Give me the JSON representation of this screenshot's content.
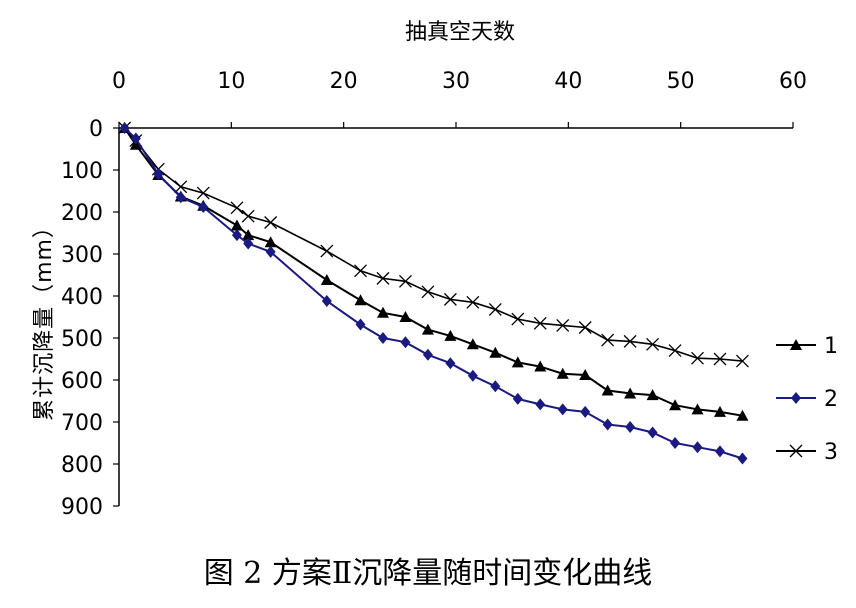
{
  "chart_data": {
    "type": "line",
    "xlabel": "抽真空天数",
    "ylabel": "累计沉降量（mm）",
    "caption": "图 2  方案Ⅱ沉降量随时间变化曲线",
    "x_axis_position": "top",
    "y_axis_inverted": true,
    "xlim": [
      0,
      60
    ],
    "ylim": [
      0,
      900
    ],
    "xticks": [
      0,
      10,
      20,
      30,
      40,
      50,
      60
    ],
    "yticks": [
      0,
      100,
      200,
      300,
      400,
      500,
      600,
      700,
      800,
      900
    ],
    "grid": false,
    "legend_position": "right",
    "series": [
      {
        "name": "1",
        "marker": "triangle",
        "color": "#000000",
        "points": [
          [
            0.5,
            0
          ],
          [
            1.5,
            40
          ],
          [
            3.5,
            112
          ],
          [
            5.5,
            163
          ],
          [
            7.5,
            185
          ],
          [
            10.5,
            232
          ],
          [
            11.5,
            255
          ],
          [
            13.5,
            272
          ],
          [
            18.5,
            362
          ],
          [
            21.5,
            410
          ],
          [
            23.5,
            440
          ],
          [
            25.5,
            450
          ],
          [
            27.5,
            480
          ],
          [
            29.5,
            495
          ],
          [
            31.5,
            515
          ],
          [
            33.5,
            535
          ],
          [
            35.5,
            558
          ],
          [
            37.5,
            568
          ],
          [
            39.5,
            585
          ],
          [
            41.5,
            588
          ],
          [
            43.5,
            625
          ],
          [
            45.5,
            632
          ],
          [
            47.5,
            636
          ],
          [
            49.5,
            660
          ],
          [
            51.5,
            670
          ],
          [
            53.5,
            676
          ],
          [
            55.5,
            685
          ]
        ]
      },
      {
        "name": "2",
        "marker": "diamond",
        "color": "#1a1a80",
        "points": [
          [
            0.5,
            0
          ],
          [
            1.5,
            25
          ],
          [
            3.5,
            110
          ],
          [
            5.5,
            165
          ],
          [
            7.5,
            188
          ],
          [
            10.5,
            255
          ],
          [
            11.5,
            275
          ],
          [
            13.5,
            295
          ],
          [
            18.5,
            412
          ],
          [
            21.5,
            468
          ],
          [
            23.5,
            500
          ],
          [
            25.5,
            510
          ],
          [
            27.5,
            540
          ],
          [
            29.5,
            560
          ],
          [
            31.5,
            590
          ],
          [
            33.5,
            615
          ],
          [
            35.5,
            645
          ],
          [
            37.5,
            658
          ],
          [
            39.5,
            670
          ],
          [
            41.5,
            676
          ],
          [
            43.5,
            706
          ],
          [
            45.5,
            712
          ],
          [
            47.5,
            725
          ],
          [
            49.5,
            750
          ],
          [
            51.5,
            760
          ],
          [
            53.5,
            770
          ],
          [
            55.5,
            787
          ]
        ]
      },
      {
        "name": "3",
        "marker": "x",
        "color": "#000000",
        "points": [
          [
            0.5,
            0
          ],
          [
            1.5,
            30
          ],
          [
            3.5,
            98
          ],
          [
            5.5,
            140
          ],
          [
            7.5,
            155
          ],
          [
            10.5,
            190
          ],
          [
            11.5,
            210
          ],
          [
            13.5,
            225
          ],
          [
            18.5,
            293
          ],
          [
            21.5,
            340
          ],
          [
            23.5,
            358
          ],
          [
            25.5,
            365
          ],
          [
            27.5,
            390
          ],
          [
            29.5,
            408
          ],
          [
            31.5,
            415
          ],
          [
            33.5,
            432
          ],
          [
            35.5,
            455
          ],
          [
            37.5,
            465
          ],
          [
            39.5,
            470
          ],
          [
            41.5,
            475
          ],
          [
            43.5,
            505
          ],
          [
            45.5,
            508
          ],
          [
            47.5,
            515
          ],
          [
            49.5,
            530
          ],
          [
            51.5,
            548
          ],
          [
            53.5,
            550
          ],
          [
            55.5,
            555
          ]
        ]
      }
    ]
  }
}
